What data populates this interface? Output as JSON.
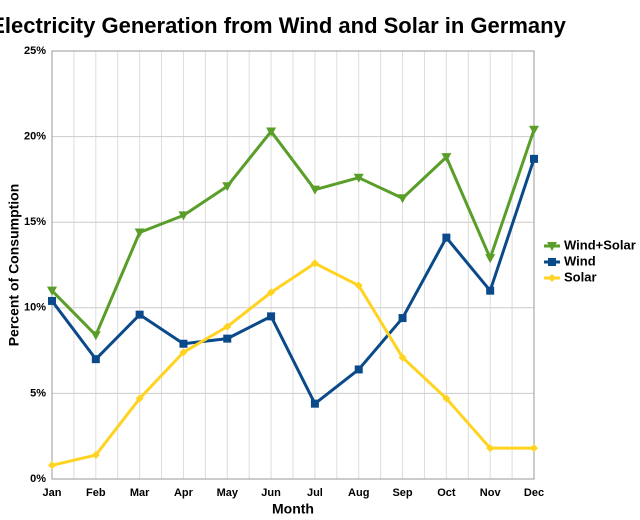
{
  "chart_data": {
    "type": "line",
    "title": "Electricity Generation from Wind and Solar in Germany",
    "x_label": "Month",
    "y_label": "Percent of Consumption",
    "categories": [
      "Jan",
      "Feb",
      "Mar",
      "Apr",
      "May",
      "Jun",
      "Jul",
      "Aug",
      "Sep",
      "Oct",
      "Nov",
      "Dec"
    ],
    "series": [
      {
        "name": "Wind+Solar",
        "color": "#5a9e2a",
        "marker": "triangle-down",
        "values": [
          11.0,
          8.4,
          14.4,
          15.4,
          17.1,
          20.3,
          16.9,
          17.6,
          16.4,
          18.8,
          12.9,
          20.4
        ]
      },
      {
        "name": "Wind",
        "color": "#0b4a8a",
        "marker": "square",
        "values": [
          10.4,
          7.0,
          9.6,
          7.9,
          8.2,
          9.5,
          4.4,
          6.4,
          9.4,
          14.1,
          11.0,
          18.7
        ]
      },
      {
        "name": "Solar",
        "color": "#ffd320",
        "marker": "diamond",
        "values": [
          0.8,
          1.4,
          4.7,
          7.4,
          8.9,
          10.9,
          12.6,
          11.3,
          7.1,
          4.7,
          1.8,
          1.8
        ]
      }
    ],
    "ylim": [
      0,
      25
    ],
    "yticks": [
      {
        "value": 0,
        "label": "0%"
      },
      {
        "value": 5,
        "label": "5%"
      },
      {
        "value": 10,
        "label": "10%"
      },
      {
        "value": 15,
        "label": "15%"
      },
      {
        "value": 20,
        "label": "20%"
      },
      {
        "value": 25,
        "label": "25%"
      }
    ],
    "grid": true,
    "legend": "right"
  }
}
